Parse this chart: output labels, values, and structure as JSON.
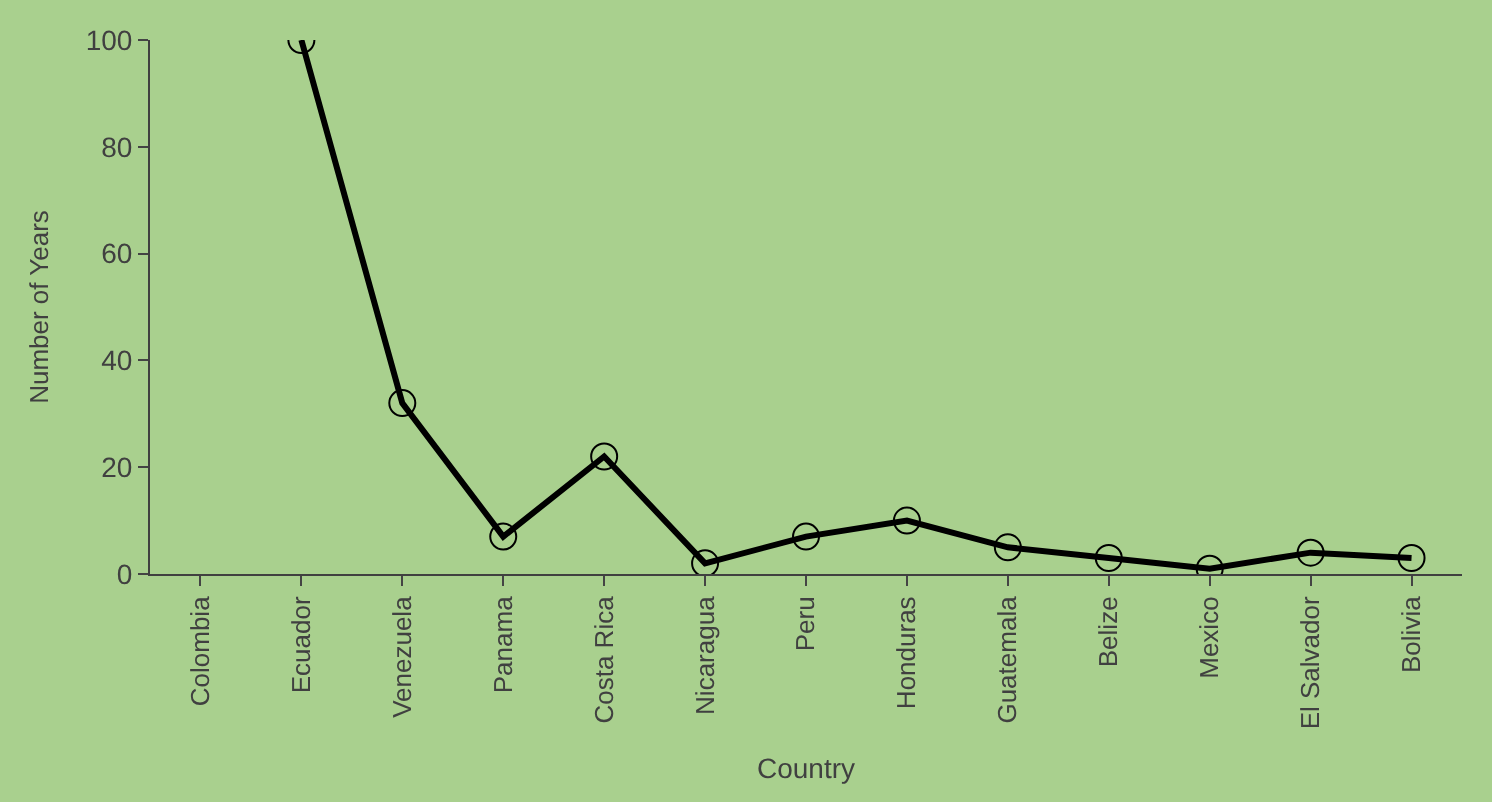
{
  "chart_data": {
    "type": "line",
    "xlabel": "Country",
    "ylabel": "Number of Years",
    "categories": [
      "Colombia",
      "Ecuador",
      "Venezuela",
      "Panama",
      "Costa Rica",
      "Nicaragua",
      "Peru",
      "Honduras",
      "Guatemala",
      "Belize",
      "Mexico",
      "El Salvador",
      "Bolivia"
    ],
    "series": [
      {
        "color": "#000000",
        "values": [
          null,
          100,
          32,
          7,
          22,
          2,
          7,
          10,
          5,
          3,
          1,
          4,
          3
        ]
      }
    ],
    "ylim": [
      0,
      100
    ],
    "yticks": [
      0,
      20,
      40,
      60,
      80,
      100
    ],
    "marker": "circle",
    "grid": false
  }
}
